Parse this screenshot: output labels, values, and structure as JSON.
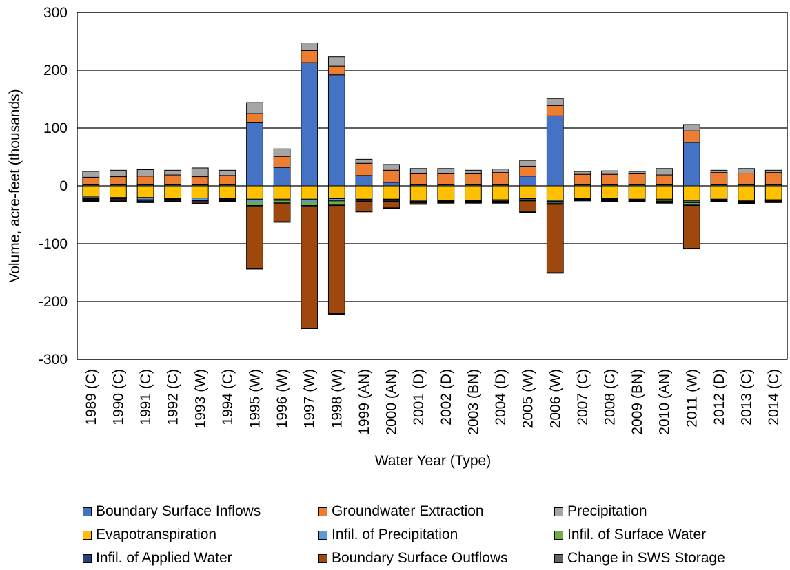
{
  "chart_data": {
    "type": "bar",
    "stacked": true,
    "title": "",
    "xlabel": "Water Year (Type)",
    "ylabel": "Volume, acre-feet (thousands)",
    "ylim": [
      -300,
      300
    ],
    "yticks": [
      -300,
      -200,
      -100,
      0,
      100,
      200,
      300
    ],
    "grid": true,
    "legend_position": "bottom",
    "categories": [
      "1989 (C)",
      "1990 (C)",
      "1991 (C)",
      "1992 (C)",
      "1993 (W)",
      "1994 (C)",
      "1995 (W)",
      "1996 (W)",
      "1997 (W)",
      "1998 (W)",
      "1999 (AN)",
      "2000 (AN)",
      "2001 (D)",
      "2002 (D)",
      "2003 (BN)",
      "2004 (D)",
      "2005 (W)",
      "2006 (W)",
      "2007 (C)",
      "2008 (C)",
      "2009 (BN)",
      "2010 (AN)",
      "2011 (W)",
      "2012 (D)",
      "2013 (C)",
      "2014 (C)"
    ],
    "series": [
      {
        "name": "Boundary Surface Inflows",
        "color": "#4472C4",
        "values": [
          2,
          2,
          2,
          2,
          2,
          2,
          110,
          32,
          213,
          192,
          18,
          6,
          2,
          2,
          2,
          2,
          17,
          121,
          2,
          2,
          2,
          2,
          75,
          2,
          2,
          2
        ]
      },
      {
        "name": "Groundwater Extraction",
        "color": "#ED7D31",
        "values": [
          13,
          14,
          15,
          17,
          14,
          16,
          15,
          19,
          21,
          15,
          21,
          21,
          19,
          19,
          19,
          21,
          17,
          18,
          18,
          18,
          19,
          17,
          20,
          21,
          20,
          21
        ]
      },
      {
        "name": "Precipitation",
        "color": "#A5A5A5",
        "values": [
          10,
          11,
          11,
          8,
          15,
          9,
          19,
          13,
          13,
          16,
          7,
          10,
          9,
          9,
          6,
          6,
          10,
          12,
          5,
          6,
          4,
          11,
          11,
          4,
          8,
          4
        ]
      },
      {
        "name": "Evapotranspiration",
        "color": "#FFC000",
        "values": [
          -19,
          -20,
          -20,
          -22,
          -21,
          -21,
          -23,
          -23,
          -23,
          -22,
          -23,
          -23,
          -25,
          -25,
          -25,
          -24,
          -22,
          -25,
          -21,
          -22,
          -23,
          -23,
          -26,
          -23,
          -26,
          -24
        ]
      },
      {
        "name": "Infil. of Precipitation",
        "color": "#5B9BD5",
        "values": [
          -3,
          -1,
          -4,
          -1,
          -4,
          -1,
          -5,
          -2,
          -5,
          -4,
          -1,
          -1,
          -2,
          -1,
          -1,
          -2,
          -2,
          -2,
          -1,
          -1,
          -1,
          -2,
          -3,
          -1,
          -1,
          -1
        ]
      },
      {
        "name": "Infil. of Surface Water",
        "color": "#70AD47",
        "values": [
          -1,
          -1,
          -1,
          -1,
          -1,
          -1,
          -6,
          -3,
          -6,
          -6,
          -1,
          -1,
          -1,
          -1,
          -1,
          -1,
          -1,
          -3,
          -1,
          -1,
          -1,
          -2,
          -3,
          -1,
          -1,
          -1
        ]
      },
      {
        "name": "Infil. of Applied Water",
        "color": "#264478",
        "values": [
          -2,
          -2,
          -2,
          -2,
          -2,
          -2,
          -2,
          -2,
          -2,
          -2,
          -2,
          -2,
          -1,
          -1,
          -1,
          -1,
          -1,
          -2,
          -1,
          -1,
          -1,
          -1,
          -2,
          -1,
          -1,
          -1
        ]
      },
      {
        "name": "Boundary Surface Outflows",
        "color": "#9E480E",
        "values": [
          -1,
          -2,
          -1,
          -1,
          -2,
          -1,
          -107,
          -32,
          -210,
          -187,
          -17,
          -11,
          -2,
          -1,
          -1,
          -1,
          -19,
          -118,
          -1,
          -1,
          -1,
          -1,
          -74,
          -1,
          -1,
          -1
        ]
      },
      {
        "name": "Change in SWS Storage",
        "color": "#636363",
        "values": [
          -1,
          -1,
          -1,
          -1,
          -1,
          -1,
          -1,
          -1,
          -1,
          -1,
          -1,
          -1,
          -1,
          -1,
          -1,
          -1,
          -1,
          -1,
          -1,
          -1,
          -1,
          -1,
          -1,
          -1,
          -1,
          -1
        ]
      }
    ]
  }
}
